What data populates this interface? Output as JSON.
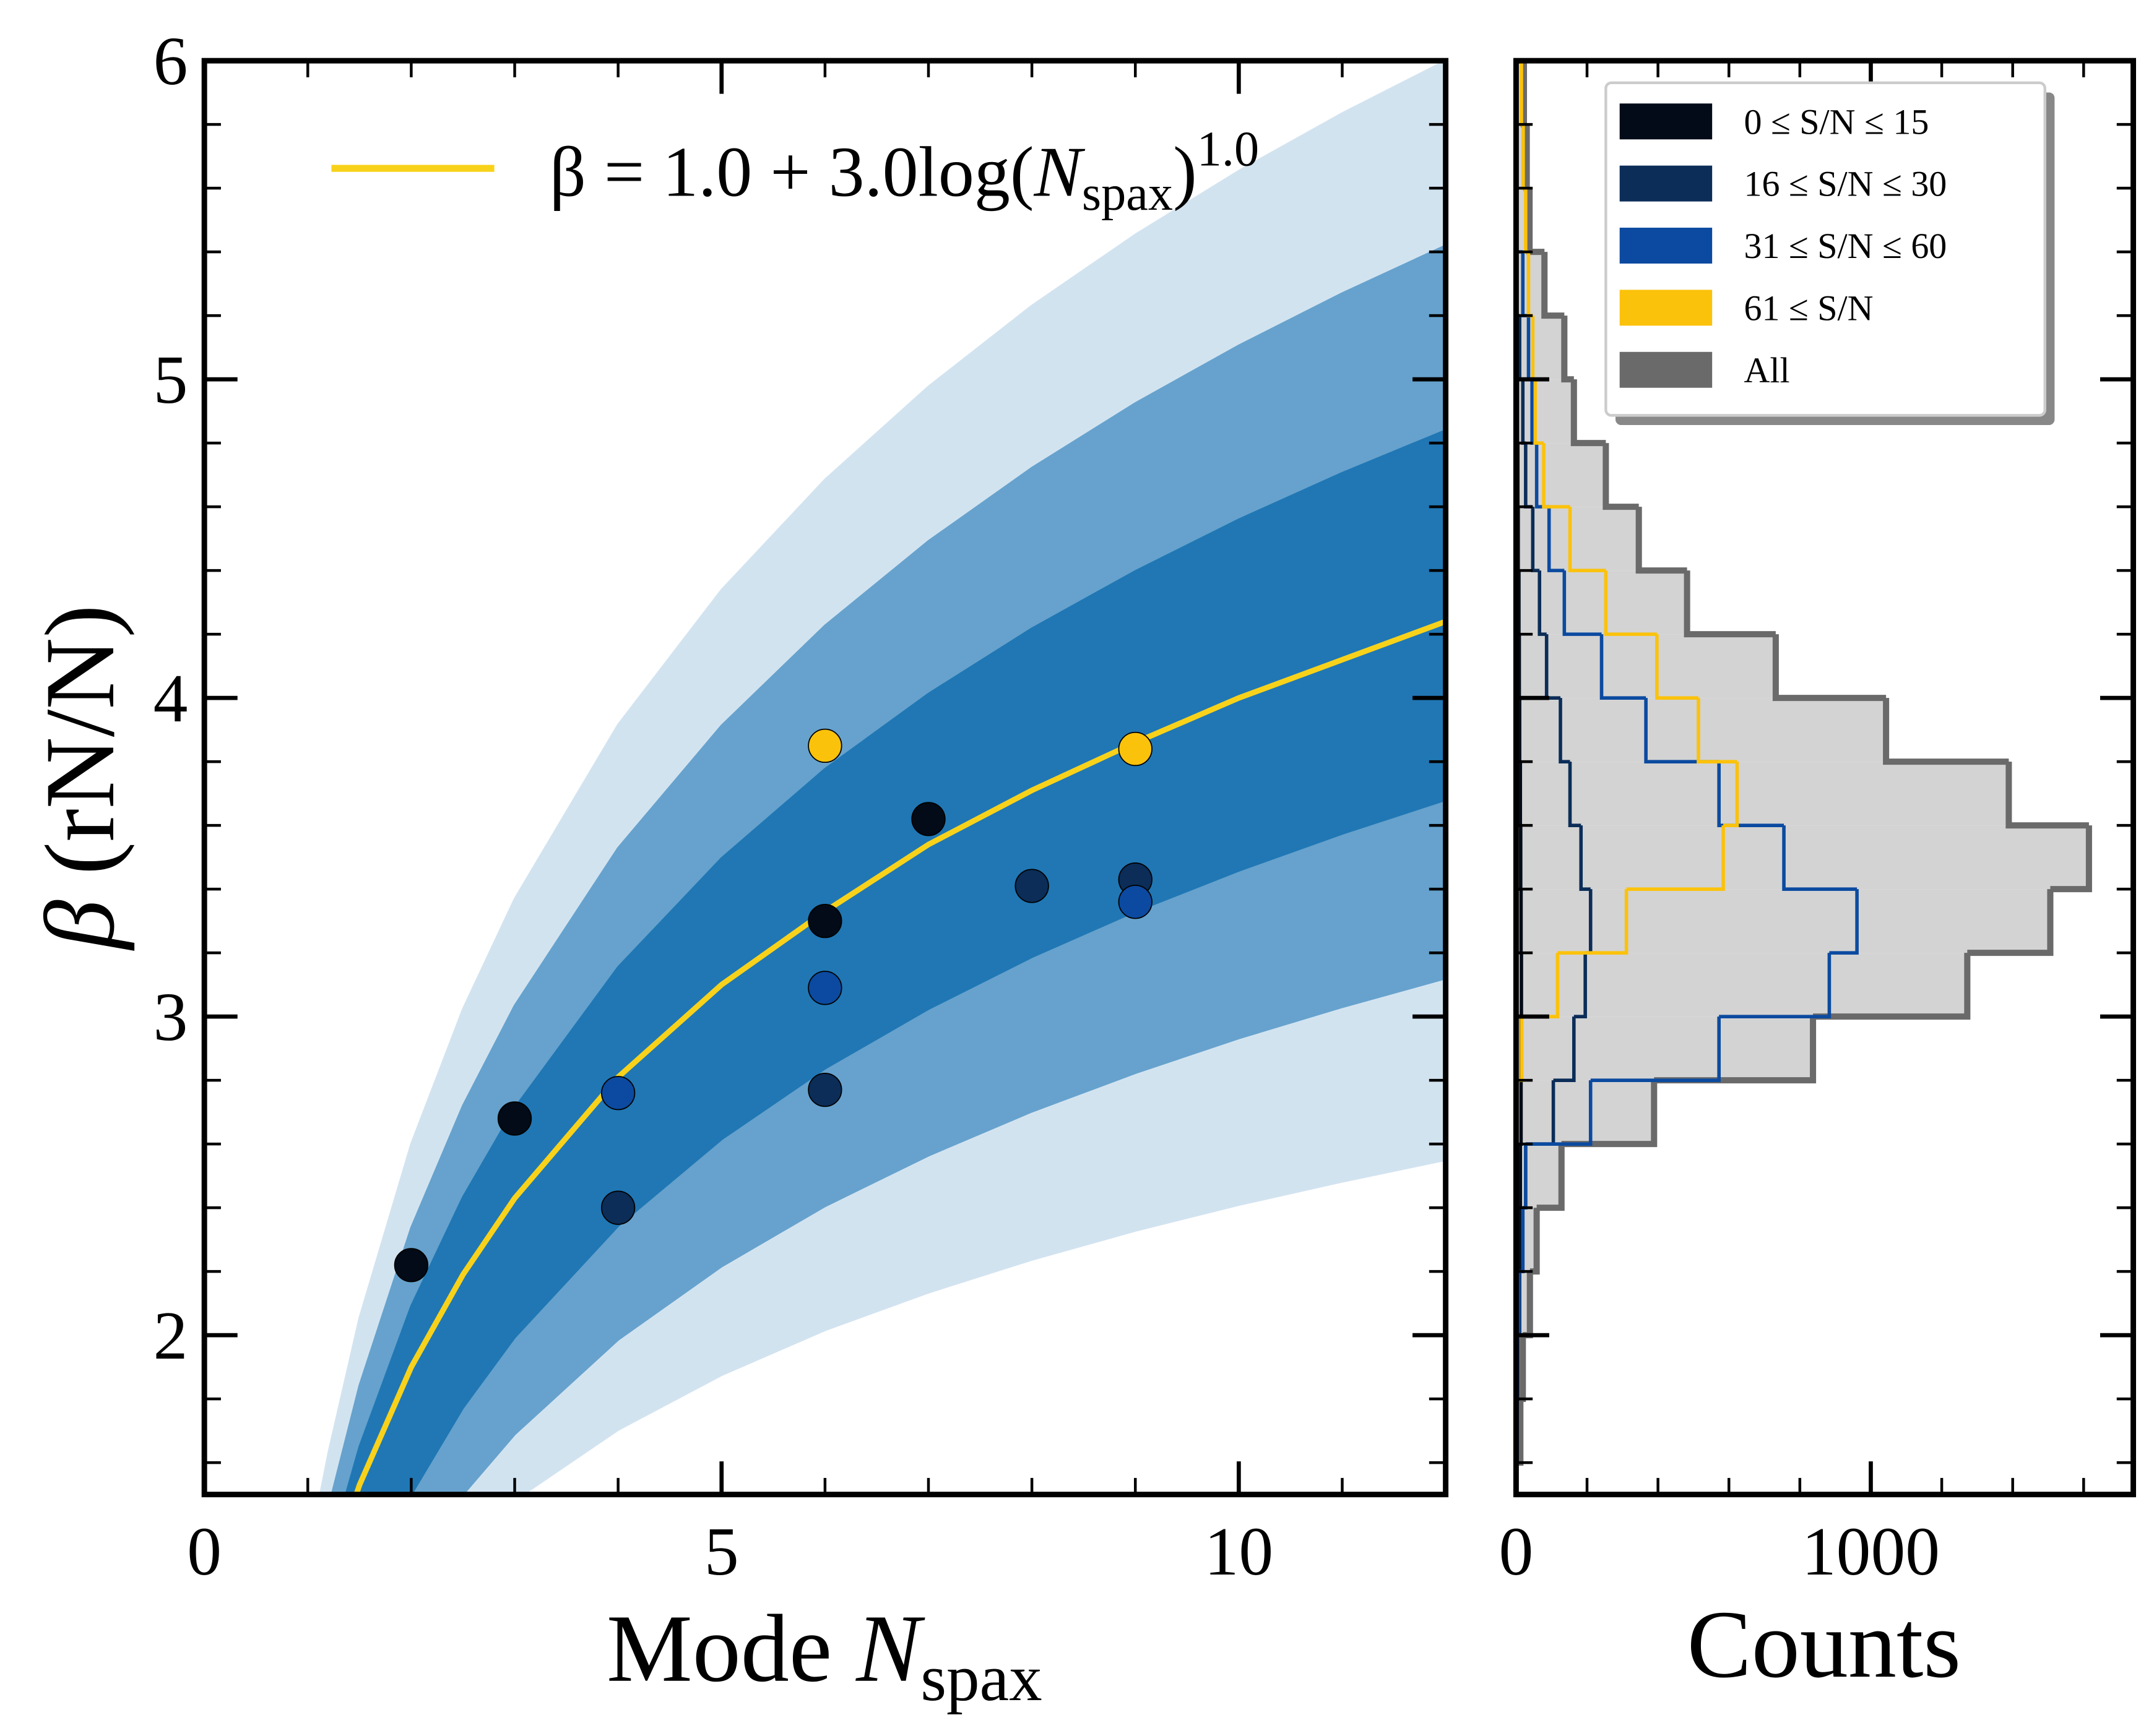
{
  "chart_data": [
    {
      "type": "scatter",
      "xlabel_parts": [
        "Mode ",
        "N",
        "spax"
      ],
      "ylabel_parts": [
        "β",
        " (rN/N)"
      ],
      "xlim": [
        0,
        12
      ],
      "ylim": [
        1.5,
        6
      ],
      "xticks": [
        0,
        5,
        10
      ],
      "yticks": [
        2,
        3,
        4,
        5,
        6
      ],
      "xminorticks": [
        1,
        2,
        3,
        4,
        6,
        7,
        8,
        9,
        11
      ],
      "yminorticks": [
        1.6,
        1.8,
        2.2,
        2.4,
        2.6,
        2.8,
        3.2,
        3.4,
        3.6,
        3.8,
        4.2,
        4.4,
        4.6,
        4.8,
        5.2,
        5.4,
        5.6,
        5.8
      ],
      "curve": {
        "name_parts": [
          "β = 1.0 + 3.0log(",
          "N",
          "spax",
          ")",
          "1.0"
        ],
        "color": "#f8d21a",
        "x": [
          1.1,
          1.2,
          1.5,
          2,
          2.5,
          3,
          4,
          5,
          6,
          7,
          8,
          9,
          10,
          11,
          12
        ],
        "values": [
          1.12,
          1.24,
          1.53,
          1.9,
          2.19,
          2.43,
          2.81,
          3.1,
          3.33,
          3.54,
          3.71,
          3.86,
          4.0,
          4.12,
          4.24
        ]
      },
      "bands": [
        {
          "color": "#d2e3f0",
          "lower": [
            0.709,
            0.776,
            0.948,
            1.17,
            1.342,
            1.482,
            1.703,
            1.875,
            2.016,
            2.134,
            2.237,
            2.328,
            2.409,
            2.482,
            2.55
          ],
          "upper": [
            1.466,
            1.631,
            2.054,
            2.6,
            3.023,
            3.369,
            3.916,
            4.339,
            4.685,
            4.977,
            5.231,
            5.454,
            5.654,
            5.835,
            6.0
          ]
        },
        {
          "color": "#66a2cd",
          "lower": [
            0.652,
            0.742,
            0.973,
            1.27,
            1.5,
            1.689,
            1.986,
            2.216,
            2.405,
            2.564,
            2.702,
            2.823,
            2.932,
            3.03,
            3.12
          ],
          "upper": [
            1.308,
            1.458,
            1.842,
            2.337,
            2.72,
            3.034,
            3.529,
            3.913,
            4.227,
            4.492,
            4.722,
            4.925,
            5.106,
            5.27,
            5.42
          ]
        },
        {
          "color": "#2077b4",
          "lower": [
            0.773,
            0.879,
            1.15,
            1.5,
            1.772,
            1.993,
            2.343,
            2.615,
            2.837,
            3.024,
            3.187,
            3.33,
            3.458,
            3.574,
            3.68
          ],
          "upper": [
            1.174,
            1.308,
            1.65,
            2.091,
            2.433,
            2.713,
            3.155,
            3.497,
            3.777,
            4.013,
            4.218,
            4.398,
            4.56,
            4.706,
            4.84
          ]
        }
      ],
      "points": {
        "x": [
          2,
          3,
          4,
          4,
          6,
          6,
          6,
          6,
          7,
          8,
          9,
          9,
          9
        ],
        "values": [
          2.22,
          2.68,
          2.76,
          2.4,
          3.85,
          3.3,
          3.09,
          2.77,
          3.62,
          3.41,
          3.84,
          3.43,
          3.36
        ],
        "colors": [
          "#020b17",
          "#020b17",
          "#0b4aa0",
          "#0b2d58",
          "#fbc20b",
          "#020b17",
          "#0b4aa0",
          "#0b2d58",
          "#020b17",
          "#0b2d58",
          "#fbc20b",
          "#0b2d58",
          "#0b4aa0"
        ]
      }
    },
    {
      "type": "histogram",
      "orientation": "horizontal",
      "xlabel": "Counts",
      "xlim": [
        0,
        1740
      ],
      "xticks": [
        0,
        1000
      ],
      "xminorticks": [
        200,
        400,
        600,
        800,
        1200,
        1400,
        1600
      ],
      "ylim": [
        1.5,
        6
      ],
      "yticks": [
        2,
        3,
        4,
        5,
        6
      ],
      "yminorticks": [
        1.6,
        1.8,
        2.2,
        2.4,
        2.6,
        2.8,
        3.2,
        3.4,
        3.6,
        3.8,
        4.2,
        4.4,
        4.6,
        4.8,
        5.2,
        5.4,
        5.6,
        5.8
      ],
      "bins": [
        1.6,
        1.8,
        2.0,
        2.2,
        2.4,
        2.6,
        2.8,
        3.0,
        3.2,
        3.4,
        3.6,
        3.8,
        4.0,
        4.2,
        4.4,
        4.6,
        4.8,
        5.0,
        5.2,
        5.4,
        5.6,
        5.8,
        6.0
      ],
      "legend": "upper right",
      "series": [
        {
          "name": "All",
          "color": "#6a6a6a",
          "fill": "#d3d3d3",
          "values": [
            12,
            19,
            39,
            58,
            128,
            389,
            837,
            1272,
            1506,
            1615,
            1389,
            1043,
            732,
            482,
            346,
            253,
            163,
            136,
            80,
            38,
            30,
            22
          ]
        },
        {
          "name": "0 ≤ S/N ≤ 15",
          "color": "#020b17",
          "values": [
            3,
            5,
            8,
            10,
            12,
            14,
            15,
            15,
            14,
            13,
            12,
            10,
            9,
            8,
            6,
            5,
            4,
            3,
            2,
            1,
            0,
            0
          ]
        },
        {
          "name": "16 ≤ S/N ≤ 30",
          "color": "#0b2d58",
          "values": [
            2,
            4,
            10,
            19,
            27,
            105,
            163,
            195,
            210,
            183,
            152,
            125,
            86,
            66,
            47,
            27,
            19,
            10,
            0,
            0,
            0,
            0
          ]
        },
        {
          "name": "31 ≤ S/N ≤ 60",
          "color": "#0b4aa0",
          "values": [
            3,
            5,
            8,
            19,
            27,
            210,
            572,
            883,
            961,
            755,
            572,
            366,
            241,
            136,
            93,
            58,
            45,
            35,
            19,
            0,
            0,
            0
          ]
        },
        {
          "name": "61 ≤ S/N",
          "color": "#fbc20b",
          "values": [
            0,
            0,
            0,
            0,
            0,
            0,
            16,
            117,
            311,
            584,
            623,
            514,
            397,
            253,
            152,
            78,
            54,
            47,
            35,
            27,
            20,
            15
          ]
        }
      ]
    }
  ]
}
